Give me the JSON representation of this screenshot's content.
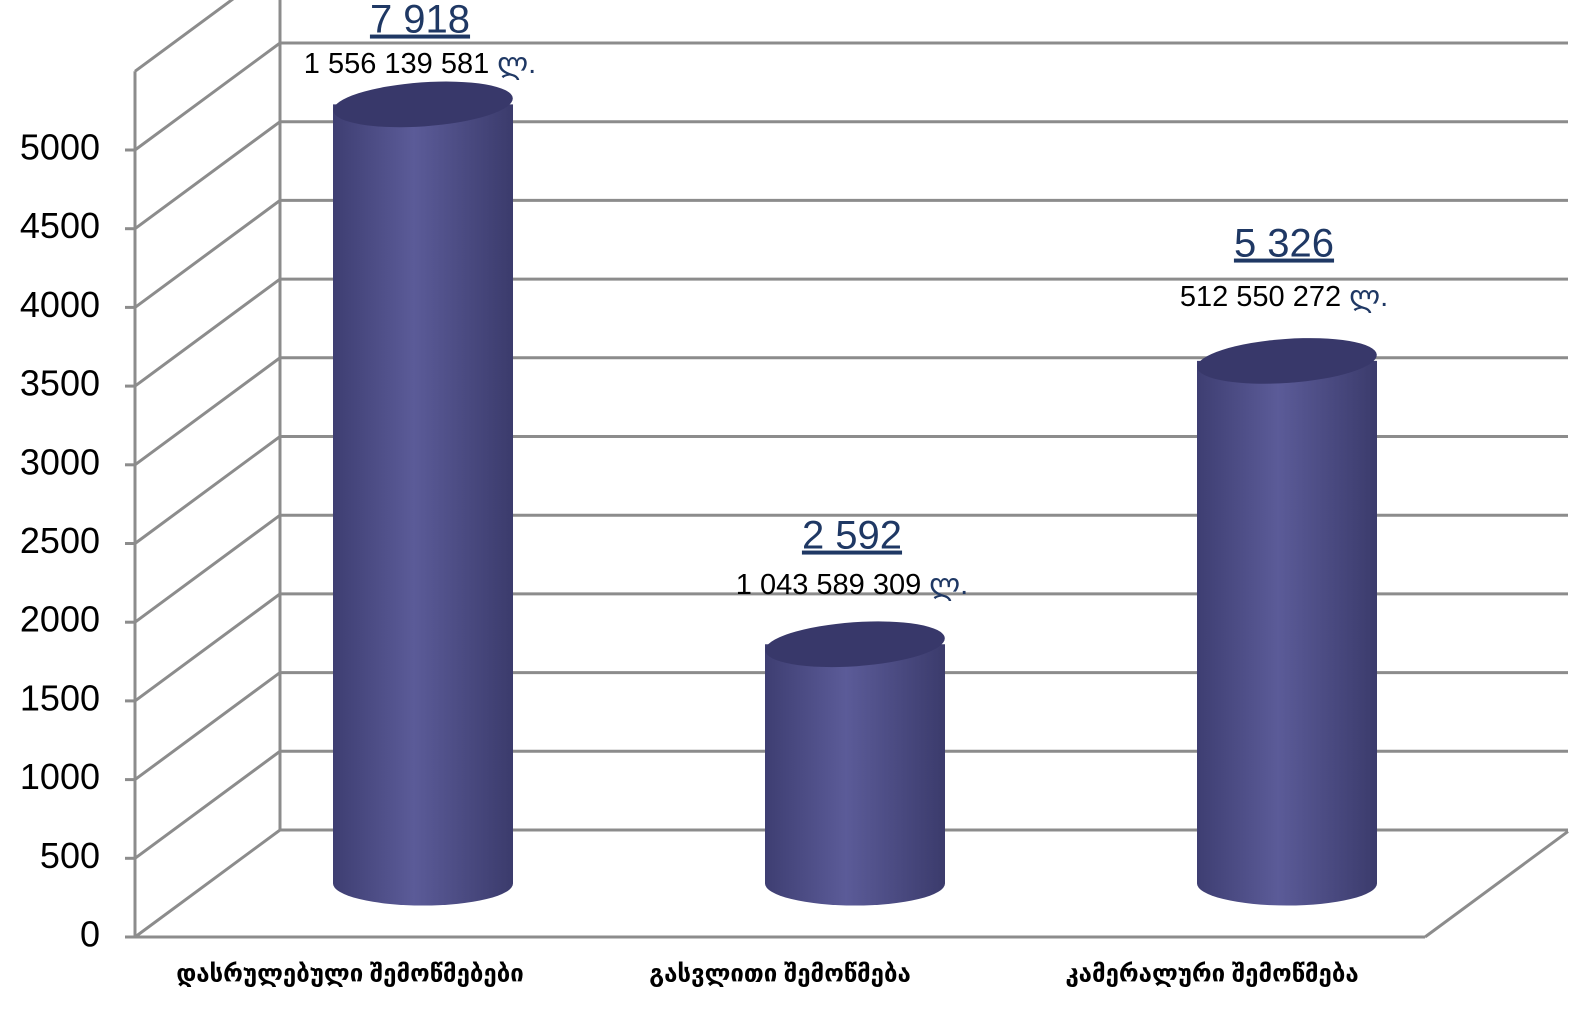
{
  "chart_data": {
    "type": "cylinder",
    "categories": [
      "დასრულებული შემოწმებები",
      "გასვლითი შემოწმება",
      "კამერალური შემოწმება"
    ],
    "values": [
      4950,
      1520,
      3320
    ],
    "color": "#4f4f8a",
    "ylim": [
      0,
      5500
    ],
    "yticks": [
      0,
      500,
      1000,
      1500,
      2000,
      2500,
      3000,
      3500,
      4000,
      4500,
      5000
    ],
    "grid": true,
    "annotations": [
      {
        "count": "7 918",
        "amount": "1 556 139 581",
        "unit": "ლ."
      },
      {
        "count": "2 592",
        "amount": "1 043 589 309",
        "unit": "ლ."
      },
      {
        "count": "5 326",
        "amount": "512 550 272",
        "unit": "ლ."
      }
    ]
  }
}
